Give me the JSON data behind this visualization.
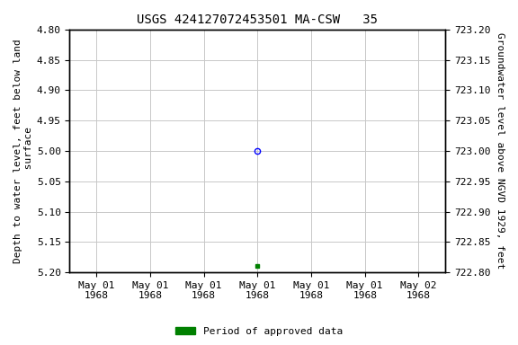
{
  "title": "USGS 424127072453501 MA-CSW   35",
  "ylabel_left": "Depth to water level, feet below land\n surface",
  "ylabel_right": "Groundwater level above NGVD 1929, feet",
  "ylim_left": [
    4.8,
    5.2
  ],
  "ylim_right": [
    722.8,
    723.2
  ],
  "left_ticks": [
    4.8,
    4.85,
    4.9,
    4.95,
    5.0,
    5.05,
    5.1,
    5.15,
    5.2
  ],
  "right_ticks": [
    723.2,
    723.15,
    723.1,
    723.05,
    723.0,
    722.95,
    722.9,
    722.85,
    722.8
  ],
  "data_point_blue": {
    "x_tick_index": 3,
    "value": 5.0,
    "marker": "o",
    "color": "blue",
    "facecolor": "none",
    "size": 4.5
  },
  "data_point_green": {
    "x_tick_index": 3,
    "value": 5.19,
    "marker": "s",
    "color": "green",
    "facecolor": "green",
    "size": 3
  },
  "n_ticks": 7,
  "xtick_labels": [
    "May 01\n1968",
    "May 01\n1968",
    "May 01\n1968",
    "May 01\n1968",
    "May 01\n1968",
    "May 01\n1968",
    "May 02\n1968"
  ],
  "grid_color": "#c8c8c8",
  "background_color": "white",
  "legend_label": "Period of approved data",
  "legend_color": "#008000",
  "title_fontsize": 10,
  "axis_label_fontsize": 8,
  "tick_fontsize": 8
}
